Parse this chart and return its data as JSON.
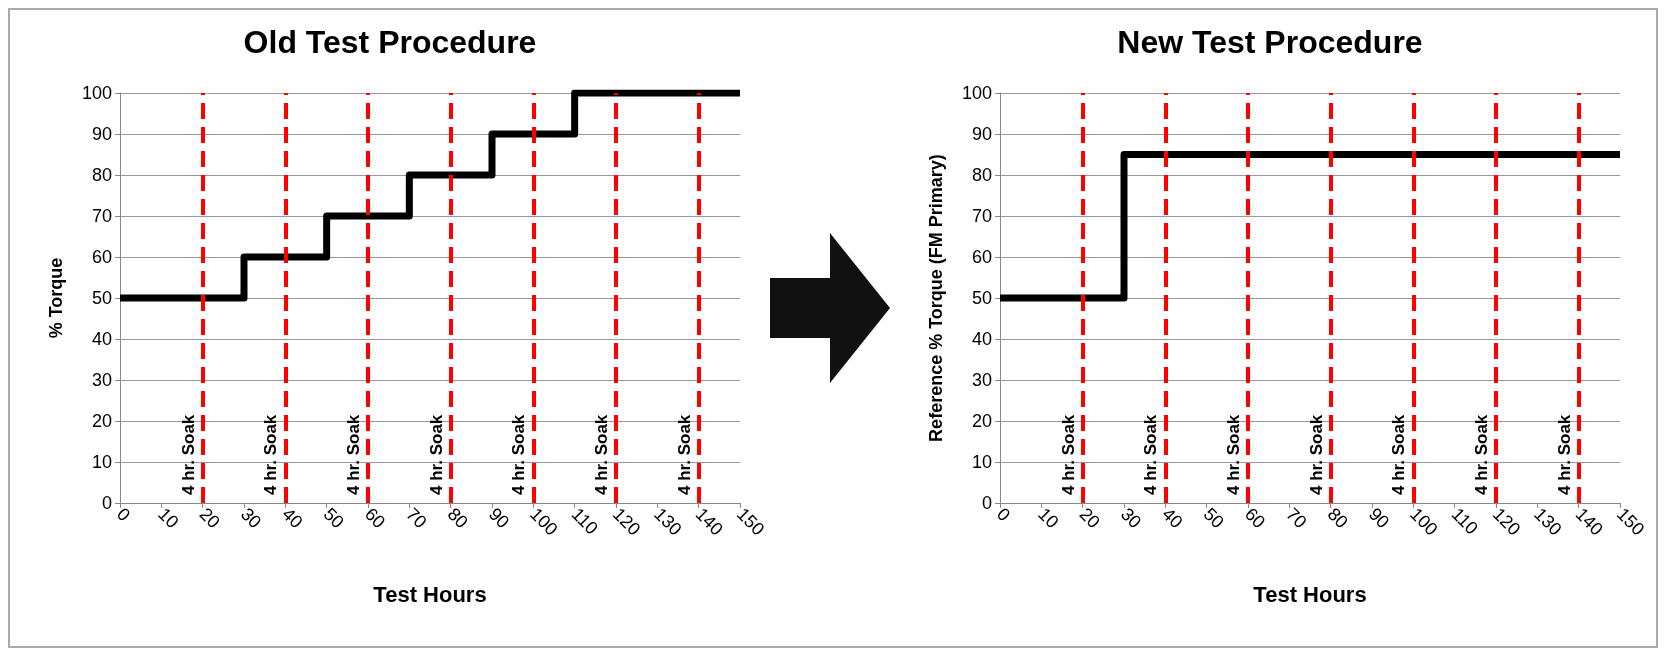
{
  "chart_data": [
    {
      "type": "step",
      "title": "Old Test Procedure",
      "xlabel": "Test Hours",
      "ylabel": "% Torque",
      "x": [
        0,
        30,
        50,
        70,
        90,
        110,
        150
      ],
      "values": [
        50,
        60,
        70,
        80,
        90,
        100,
        100
      ],
      "color": "#000000",
      "marker": "none",
      "xlim": [
        0,
        150
      ],
      "xticks": [
        0,
        10,
        20,
        30,
        40,
        50,
        60,
        70,
        80,
        90,
        100,
        110,
        120,
        130,
        140,
        150
      ],
      "ylim": [
        0,
        100
      ],
      "yticks": [
        0,
        10,
        20,
        30,
        40,
        50,
        60,
        70,
        80,
        90,
        100
      ],
      "grid": "y",
      "ref_lines": [
        {
          "axis": "x",
          "value": 20,
          "label": "4 hr. Soak",
          "color": "#ff0000",
          "line_style": "dashed"
        },
        {
          "axis": "x",
          "value": 40,
          "label": "4 hr. Soak",
          "color": "#ff0000",
          "line_style": "dashed"
        },
        {
          "axis": "x",
          "value": 60,
          "label": "4 hr. Soak",
          "color": "#ff0000",
          "line_style": "dashed"
        },
        {
          "axis": "x",
          "value": 80,
          "label": "4 hr. Soak",
          "color": "#ff0000",
          "line_style": "dashed"
        },
        {
          "axis": "x",
          "value": 100,
          "label": "4 hr. Soak",
          "color": "#ff0000",
          "line_style": "dashed"
        },
        {
          "axis": "x",
          "value": 120,
          "label": "4 hr. Soak",
          "color": "#ff0000",
          "line_style": "dashed"
        },
        {
          "axis": "x",
          "value": 140,
          "label": "4 hr. Soak",
          "color": "#ff0000",
          "line_style": "dashed"
        }
      ]
    },
    {
      "type": "step",
      "title": "New Test Procedure",
      "xlabel": "Test Hours",
      "ylabel": "Reference % Torque (FM Primary)",
      "x": [
        0,
        30,
        150
      ],
      "values": [
        50,
        85,
        85
      ],
      "color": "#000000",
      "marker": "none",
      "xlim": [
        0,
        150
      ],
      "xticks": [
        0,
        10,
        20,
        30,
        40,
        50,
        60,
        70,
        80,
        90,
        100,
        110,
        120,
        130,
        140,
        150
      ],
      "ylim": [
        0,
        100
      ],
      "yticks": [
        0,
        10,
        20,
        30,
        40,
        50,
        60,
        70,
        80,
        90,
        100
      ],
      "grid": "y",
      "ref_lines": [
        {
          "axis": "x",
          "value": 20,
          "label": "4 hr. Soak",
          "color": "#ff0000",
          "line_style": "dashed"
        },
        {
          "axis": "x",
          "value": 40,
          "label": "4 hr. Soak",
          "color": "#ff0000",
          "line_style": "dashed"
        },
        {
          "axis": "x",
          "value": 60,
          "label": "4 hr. Soak",
          "color": "#ff0000",
          "line_style": "dashed"
        },
        {
          "axis": "x",
          "value": 80,
          "label": "4 hr. Soak",
          "color": "#ff0000",
          "line_style": "dashed"
        },
        {
          "axis": "x",
          "value": 100,
          "label": "4 hr. Soak",
          "color": "#ff0000",
          "line_style": "dashed"
        },
        {
          "axis": "x",
          "value": 120,
          "label": "4 hr. Soak",
          "color": "#ff0000",
          "line_style": "dashed"
        },
        {
          "axis": "x",
          "value": 140,
          "label": "4 hr. Soak",
          "color": "#ff0000",
          "line_style": "dashed"
        }
      ]
    }
  ]
}
